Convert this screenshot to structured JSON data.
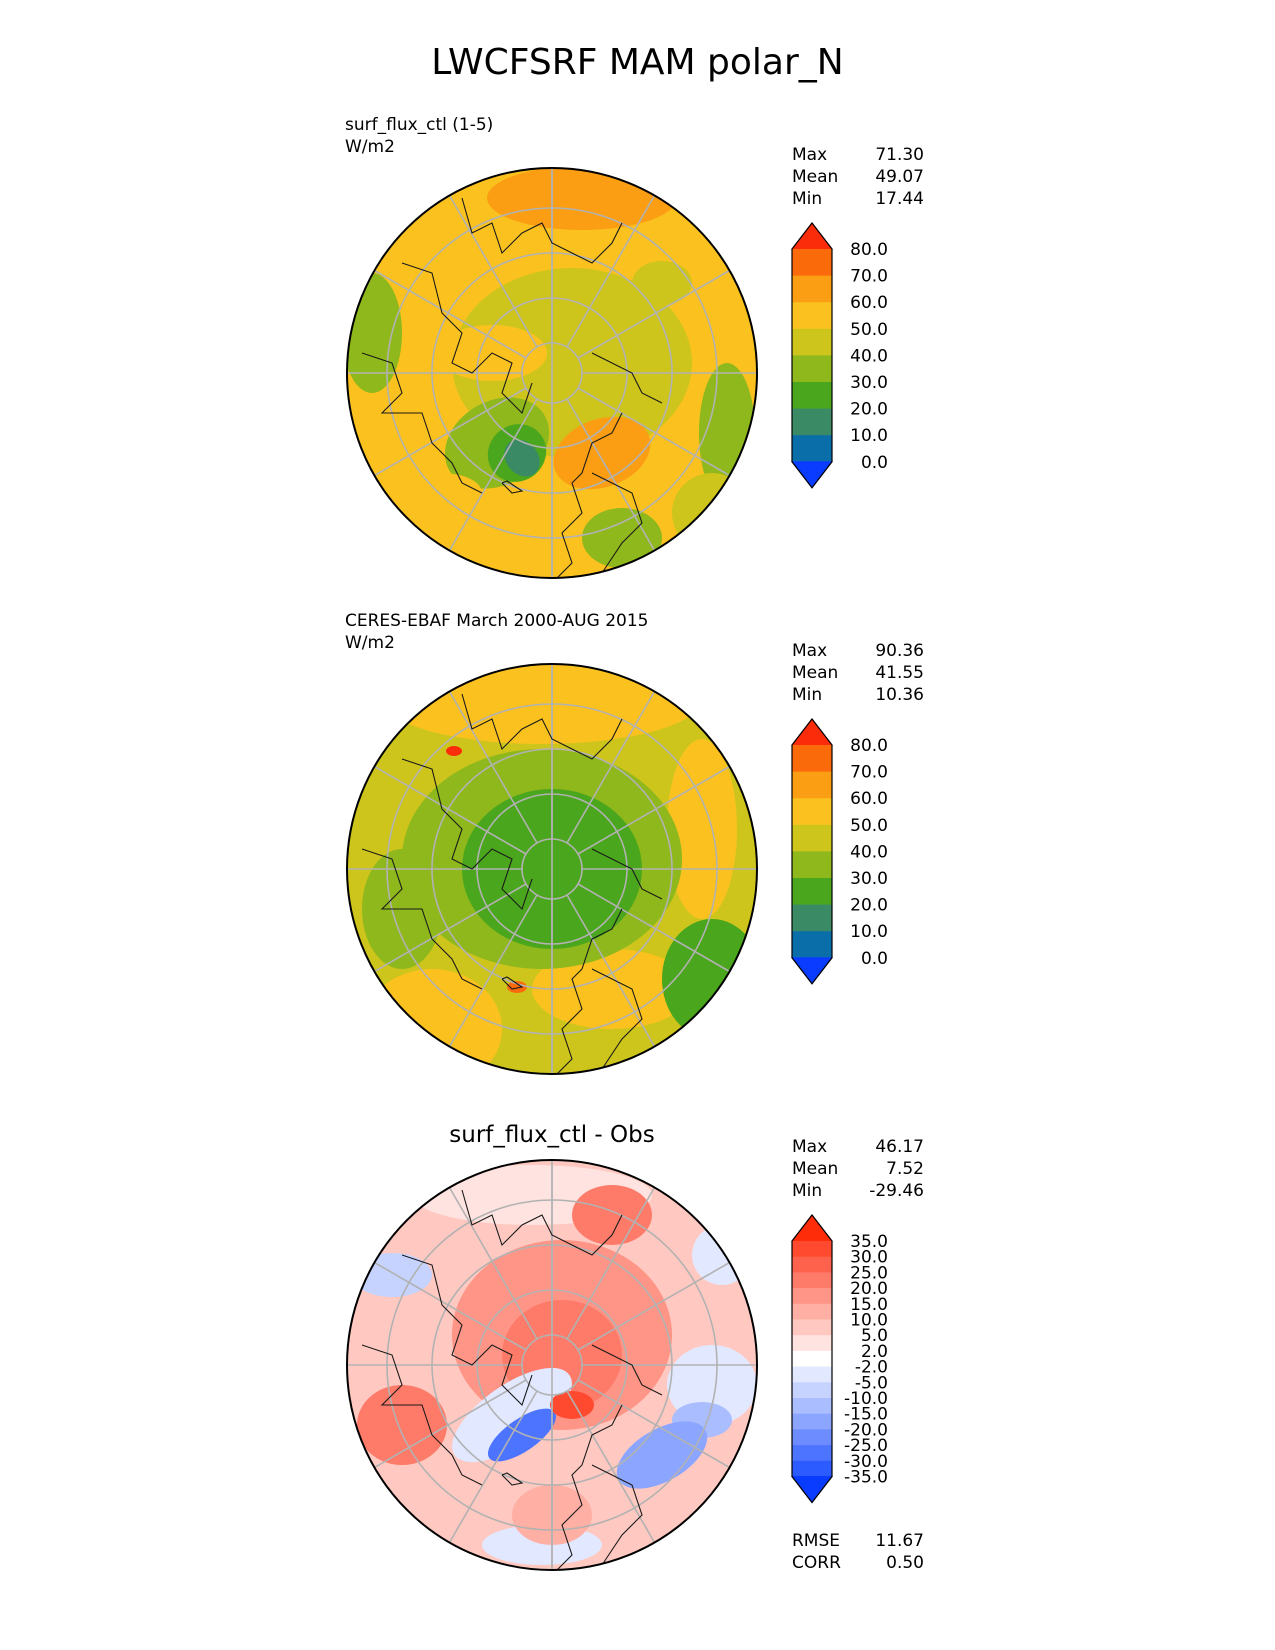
{
  "title": "LWCFSRF MAM polar_N",
  "panels": [
    {
      "id": "test",
      "title_lines": [
        "surf_flux_ctl (1-5)",
        "W/m2"
      ],
      "stats": [
        {
          "label": "Max",
          "value": "71.30"
        },
        {
          "label": "Mean",
          "value": "49.07"
        },
        {
          "label": "Min",
          "value": "17.44"
        }
      ],
      "colorbar": {
        "ticks": [
          "80.0",
          "70.0",
          "60.0",
          "50.0",
          "40.0",
          "30.0",
          "20.0",
          "10.0",
          "0.0"
        ]
      }
    },
    {
      "id": "ref",
      "title_lines": [
        "CERES-EBAF March 2000-AUG 2015",
        "W/m2"
      ],
      "stats": [
        {
          "label": "Max",
          "value": "90.36"
        },
        {
          "label": "Mean",
          "value": "41.55"
        },
        {
          "label": "Min",
          "value": "10.36"
        }
      ],
      "colorbar": {
        "ticks": [
          "80.0",
          "70.0",
          "60.0",
          "50.0",
          "40.0",
          "30.0",
          "20.0",
          "10.0",
          "0.0"
        ]
      }
    },
    {
      "id": "diff",
      "title_center": "surf_flux_ctl - Obs",
      "stats": [
        {
          "label": "Max",
          "value": "46.17"
        },
        {
          "label": "Mean",
          "value": "7.52"
        },
        {
          "label": "Min",
          "value": "-29.46"
        }
      ],
      "colorbar": {
        "ticks": [
          "35.0",
          "30.0",
          "25.0",
          "20.0",
          "15.0",
          "10.0",
          "5.0",
          "2.0",
          "-2.0",
          "-5.0",
          "-10.0",
          "-15.0",
          "-20.0",
          "-25.0",
          "-30.0",
          "-35.0"
        ]
      },
      "metrics": [
        {
          "label": "RMSE",
          "value": "11.67"
        },
        {
          "label": "CORR",
          "value": "0.50"
        }
      ]
    }
  ],
  "palettes": {
    "sequential": [
      "#0a3cff",
      "#0a6ea8",
      "#3a8a66",
      "#4aa61c",
      "#8eb81c",
      "#cec51c",
      "#fbc21f",
      "#fb9e13",
      "#fb6a0a",
      "#fb2c0a"
    ],
    "diverging": [
      "#0a3cff",
      "#2c5bff",
      "#4d74ff",
      "#6c8cff",
      "#8ca6ff",
      "#a9bdff",
      "#c6d3ff",
      "#e1e8ff",
      "#ffffff",
      "#ffe3e0",
      "#ffc9c1",
      "#ffafa3",
      "#ff9586",
      "#ff7b69",
      "#ff624c",
      "#ff4a30",
      "#ff2c0a"
    ]
  }
}
